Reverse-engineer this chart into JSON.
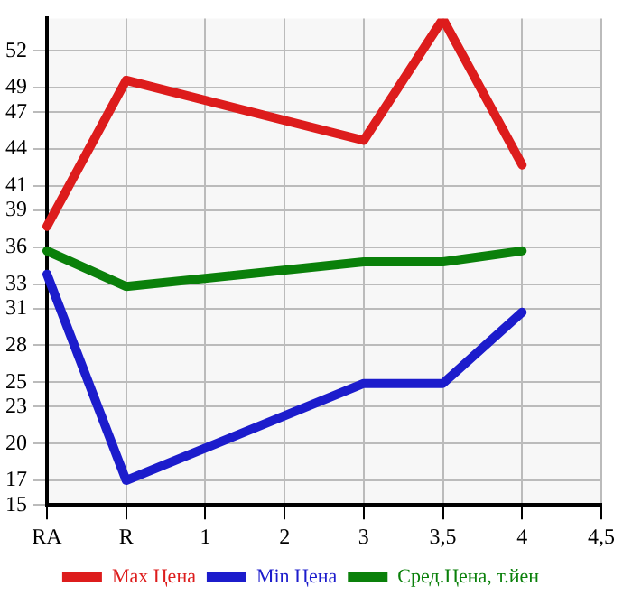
{
  "chart_data": {
    "type": "line",
    "categories": [
      "RA",
      "R",
      "1",
      "2",
      "3",
      "3,5",
      "4",
      "4,5"
    ],
    "series": [
      {
        "name": "Max Цена",
        "color": "#dd1c1c",
        "values": [
          37.7,
          49.6,
          null,
          null,
          44.7,
          54.6,
          42.7,
          null
        ]
      },
      {
        "name": "Min Цена",
        "color": "#1c1ccc",
        "values": [
          33.8,
          17.0,
          null,
          null,
          24.9,
          24.9,
          30.7,
          null
        ]
      },
      {
        "name": "Сред.Цена, т.йен",
        "color": "#0a800a",
        "values": [
          35.7,
          32.8,
          null,
          null,
          34.8,
          34.8,
          35.7,
          null
        ]
      }
    ],
    "ylim": [
      15,
      54.64
    ],
    "yticks": [
      15,
      17,
      20,
      23,
      25,
      28,
      31,
      33,
      36,
      39,
      41,
      44,
      47,
      49,
      52
    ],
    "grid": true,
    "legend": "bottom",
    "marker": "none",
    "line_style": "solid"
  }
}
